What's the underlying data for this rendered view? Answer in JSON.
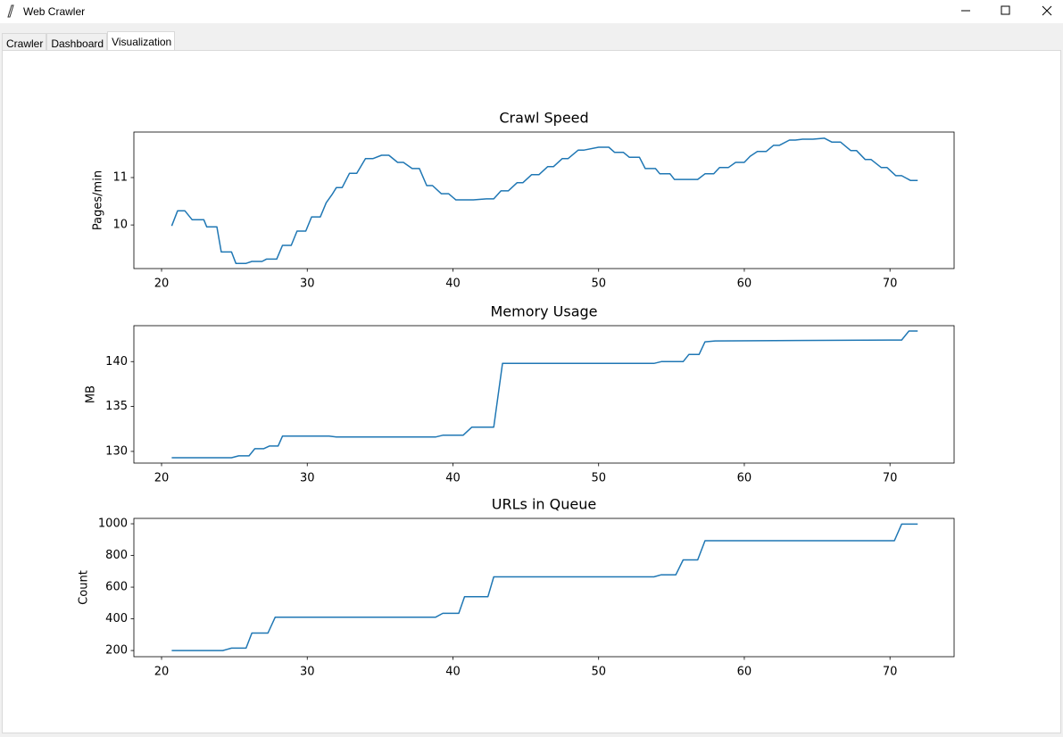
{
  "window": {
    "title": "Web Crawler"
  },
  "tabs": [
    "Crawler",
    "Dashboard",
    "Visualization"
  ],
  "active_tab": 2,
  "chart_data": [
    {
      "type": "line",
      "title": "Crawl Speed",
      "y_label": "Pages/min",
      "color": "#1f77b4",
      "x": [
        20.7,
        21.1,
        21.6,
        22.1,
        22.9,
        23.1,
        23.8,
        24.1,
        24.8,
        25.1,
        25.8,
        26.2,
        26.9,
        27.2,
        27.9,
        28.3,
        28.9,
        29.3,
        29.9,
        30.3,
        30.9,
        31.3,
        31.7,
        32.0,
        32.4,
        32.9,
        33.4,
        34.0,
        34.5,
        35.1,
        35.6,
        36.2,
        36.6,
        37.2,
        37.7,
        38.2,
        38.6,
        39.2,
        39.7,
        40.2,
        41.4,
        42.3,
        42.8,
        43.3,
        43.8,
        44.4,
        44.8,
        45.4,
        45.9,
        46.5,
        46.9,
        47.5,
        47.9,
        48.6,
        49.0,
        50.0,
        50.7,
        51.1,
        51.7,
        52.1,
        52.8,
        53.2,
        53.9,
        54.2,
        54.9,
        55.2,
        56.8,
        57.3,
        57.9,
        58.3,
        58.9,
        59.4,
        60.0,
        60.4,
        60.9,
        61.5,
        62.0,
        62.4,
        63.1,
        63.5,
        64.0,
        64.7,
        65.5,
        66.0,
        66.6,
        67.3,
        67.7,
        68.3,
        68.7,
        69.4,
        69.8,
        70.4,
        70.8,
        71.4,
        71.9
      ],
      "values": [
        9.98,
        10.3,
        10.3,
        10.11,
        10.11,
        9.96,
        9.96,
        9.43,
        9.43,
        9.19,
        9.19,
        9.23,
        9.23,
        9.28,
        9.28,
        9.57,
        9.57,
        9.87,
        9.87,
        10.17,
        10.17,
        10.47,
        10.64,
        10.79,
        10.79,
        11.09,
        11.09,
        11.4,
        11.4,
        11.47,
        11.47,
        11.32,
        11.32,
        11.19,
        11.19,
        10.83,
        10.83,
        10.66,
        10.66,
        10.53,
        10.53,
        10.55,
        10.55,
        10.72,
        10.72,
        10.89,
        10.89,
        11.06,
        11.06,
        11.23,
        11.23,
        11.4,
        11.4,
        11.58,
        11.58,
        11.64,
        11.64,
        11.53,
        11.53,
        11.43,
        11.43,
        11.19,
        11.19,
        11.08,
        11.08,
        10.96,
        10.96,
        11.08,
        11.08,
        11.21,
        11.21,
        11.32,
        11.32,
        11.45,
        11.55,
        11.55,
        11.68,
        11.68,
        11.79,
        11.79,
        11.81,
        11.81,
        11.83,
        11.75,
        11.75,
        11.57,
        11.57,
        11.38,
        11.38,
        11.21,
        11.21,
        11.04,
        11.04,
        10.94,
        10.94
      ],
      "xlim": [
        18.1,
        74.4
      ],
      "xticks": [
        20,
        30,
        40,
        50,
        60,
        70
      ],
      "ylim": [
        9.08,
        11.96
      ],
      "yticks": [
        10,
        11
      ]
    },
    {
      "type": "line",
      "title": "Memory Usage",
      "y_label": "MB",
      "color": "#1f77b4",
      "x": [
        20.7,
        24.8,
        25.3,
        26.0,
        26.4,
        27.0,
        27.4,
        28.0,
        28.3,
        31.5,
        32.0,
        38.8,
        39.3,
        40.7,
        41.3,
        42.8,
        43.4,
        53.8,
        54.3,
        55.8,
        56.2,
        56.9,
        57.3,
        58.0,
        70.0,
        70.8,
        71.3,
        71.9
      ],
      "values": [
        129.3,
        129.3,
        129.5,
        129.5,
        130.3,
        130.3,
        130.6,
        130.6,
        131.7,
        131.7,
        131.6,
        131.6,
        131.8,
        131.8,
        132.7,
        132.7,
        139.8,
        139.8,
        140.0,
        140.0,
        140.8,
        140.8,
        142.2,
        142.3,
        142.4,
        142.4,
        143.4,
        143.4
      ],
      "xlim": [
        18.1,
        74.4
      ],
      "xticks": [
        20,
        30,
        40,
        50,
        60,
        70
      ],
      "ylim": [
        128.7,
        144
      ],
      "yticks": [
        130,
        135,
        140
      ]
    },
    {
      "type": "line",
      "title": "URLs in Queue",
      "y_label": "Count",
      "color": "#1f77b4",
      "x": [
        20.7,
        24.2,
        24.8,
        25.8,
        26.2,
        27.3,
        27.8,
        38.8,
        39.3,
        40.4,
        40.8,
        42.4,
        42.8,
        53.8,
        54.3,
        55.3,
        55.8,
        56.8,
        57.3,
        70.3,
        70.8,
        71.9
      ],
      "values": [
        200,
        200,
        215,
        215,
        310,
        310,
        410,
        410,
        435,
        435,
        540,
        540,
        665,
        665,
        678,
        678,
        772,
        772,
        893,
        893,
        998,
        998
      ],
      "xlim": [
        18.1,
        74.4
      ],
      "xticks": [
        20,
        30,
        40,
        50,
        60,
        70
      ],
      "ylim": [
        161,
        1034
      ],
      "yticks": [
        200,
        400,
        600,
        800,
        1000
      ]
    }
  ]
}
